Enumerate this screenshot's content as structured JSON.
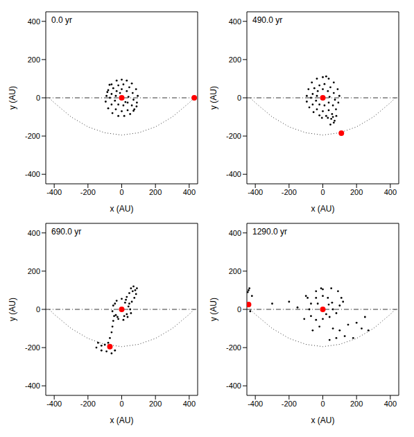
{
  "chart_data": [
    {
      "type": "scatter",
      "title": "0.0 yr",
      "x_label": "x (AU)",
      "y_label": "y (AU)",
      "xlim": [
        -450,
        450
      ],
      "ylim": [
        -450,
        450
      ],
      "xticks": [
        -400,
        -200,
        0,
        200,
        400
      ],
      "yticks": [
        -400,
        -200,
        0,
        200,
        400
      ],
      "series": [
        {
          "type": "line",
          "line_style": "dashdot",
          "color": "#000000",
          "x": [
            -450,
            450
          ],
          "y": [
            0,
            0
          ]
        },
        {
          "type": "line",
          "line_style": "dotted",
          "color": "#000000",
          "x": [
            -430,
            -400,
            -300,
            -200,
            -100,
            0,
            100,
            200,
            300,
            400,
            430
          ],
          "y": [
            0,
            -26,
            -100,
            -152,
            -183,
            -195,
            -183,
            -152,
            -100,
            -26,
            0
          ]
        },
        {
          "type": "scatter",
          "marker": "dot",
          "color": "#000000",
          "x": [
            -90,
            -80,
            -60,
            -30,
            0,
            30,
            60,
            85,
            95,
            90,
            75,
            50,
            15,
            -20,
            -55,
            -80,
            -95,
            -60,
            -50,
            -20,
            10,
            45,
            65,
            70,
            60,
            35,
            0,
            -35,
            -60,
            -70,
            -35,
            -30,
            0,
            30,
            40,
            35,
            10,
            -20,
            -40,
            -72,
            70,
            -85,
            88,
            -10,
            22
          ],
          "y": [
            10,
            40,
            70,
            90,
            95,
            90,
            75,
            45,
            10,
            -25,
            -60,
            -85,
            -95,
            -95,
            -80,
            -55,
            -20,
            20,
            50,
            65,
            70,
            55,
            25,
            -10,
            -40,
            -65,
            -70,
            -60,
            -35,
            0,
            10,
            35,
            45,
            35,
            5,
            -25,
            -40,
            -35,
            -15,
            68,
            -68,
            30,
            -45,
            25,
            -22
          ]
        },
        {
          "type": "scatter",
          "marker": "circle",
          "color": "#ff0000",
          "x": [
            0,
            430
          ],
          "y": [
            0,
            0
          ]
        }
      ]
    },
    {
      "type": "scatter",
      "title": "490.0 yr",
      "x_label": "x (AU)",
      "y_label": "y (AU)",
      "xlim": [
        -450,
        450
      ],
      "ylim": [
        -450,
        450
      ],
      "xticks": [
        -400,
        -200,
        0,
        200,
        400
      ],
      "yticks": [
        -400,
        -200,
        0,
        200,
        400
      ],
      "series": [
        {
          "type": "line",
          "line_style": "dashdot",
          "color": "#000000",
          "x": [
            -450,
            450
          ],
          "y": [
            0,
            0
          ]
        },
        {
          "type": "line",
          "line_style": "dotted",
          "color": "#000000",
          "x": [
            -430,
            -400,
            -300,
            -200,
            -100,
            0,
            100,
            200,
            300,
            400,
            430
          ],
          "y": [
            0,
            -26,
            -100,
            -152,
            -183,
            -195,
            -183,
            -152,
            -100,
            -26,
            0
          ]
        },
        {
          "type": "scatter",
          "marker": "dot",
          "color": "#000000",
          "x": [
            -95,
            -85,
            -65,
            -35,
            0,
            35,
            65,
            88,
            98,
            92,
            78,
            55,
            20,
            -20,
            -55,
            -80,
            -95,
            -60,
            -50,
            -20,
            10,
            45,
            65,
            72,
            60,
            35,
            0,
            -35,
            -60,
            -70,
            -35,
            -30,
            0,
            30,
            40,
            35,
            10,
            -20,
            -40,
            60,
            70,
            65,
            50,
            80,
            30,
            45,
            -5,
            20
          ],
          "y": [
            10,
            45,
            80,
            100,
            108,
            100,
            80,
            45,
            10,
            -25,
            -60,
            -85,
            -95,
            -92,
            -75,
            -50,
            -20,
            20,
            50,
            65,
            72,
            55,
            25,
            -10,
            -40,
            -65,
            -70,
            -60,
            -35,
            0,
            10,
            35,
            45,
            35,
            5,
            -25,
            -40,
            -35,
            -15,
            -100,
            -120,
            -130,
            -110,
            -95,
            -105,
            -140,
            -105,
            112
          ]
        },
        {
          "type": "scatter",
          "marker": "circle",
          "color": "#ff0000",
          "x": [
            0,
            110
          ],
          "y": [
            0,
            -185
          ]
        }
      ]
    },
    {
      "type": "scatter",
      "title": "690.0 yr",
      "x_label": "x (AU)",
      "y_label": "y (AU)",
      "xlim": [
        -450,
        450
      ],
      "ylim": [
        -450,
        450
      ],
      "xticks": [
        -400,
        -200,
        0,
        200,
        400
      ],
      "yticks": [
        -400,
        -200,
        0,
        200,
        400
      ],
      "series": [
        {
          "type": "line",
          "line_style": "dashdot",
          "color": "#000000",
          "x": [
            -450,
            450
          ],
          "y": [
            0,
            0
          ]
        },
        {
          "type": "line",
          "line_style": "dotted",
          "color": "#000000",
          "x": [
            -430,
            -400,
            -300,
            -200,
            -100,
            0,
            100,
            200,
            300,
            400,
            430
          ],
          "y": [
            0,
            -26,
            -100,
            -152,
            -183,
            -195,
            -183,
            -152,
            -100,
            -26,
            0
          ]
        },
        {
          "type": "scatter",
          "marker": "dot",
          "color": "#000000",
          "x": [
            50,
            45,
            25,
            0,
            -30,
            -50,
            -55,
            -45,
            -20,
            10,
            35,
            55,
            -40,
            60,
            75,
            85,
            80,
            70,
            55,
            45,
            30,
            90,
            65,
            -50,
            -55,
            -60,
            -70,
            -80,
            -100,
            -120,
            -140,
            -150,
            -120,
            -90,
            -60,
            -40,
            -70,
            40,
            20,
            -25,
            -35,
            30,
            15
          ],
          "y": [
            0,
            30,
            50,
            55,
            45,
            20,
            -10,
            -35,
            -50,
            -55,
            -40,
            -20,
            30,
            40,
            60,
            80,
            100,
            120,
            110,
            85,
            65,
            110,
            95,
            -60,
            -90,
            -120,
            -150,
            -175,
            -185,
            -190,
            -175,
            -200,
            -215,
            -220,
            -230,
            -215,
            -200,
            15,
            35,
            -40,
            -30,
            -25,
            -35
          ]
        },
        {
          "type": "scatter",
          "marker": "circle",
          "color": "#ff0000",
          "x": [
            0,
            -70
          ],
          "y": [
            0,
            -195
          ]
        }
      ]
    },
    {
      "type": "scatter",
      "title": "1290.0 yr",
      "x_label": "x (AU)",
      "y_label": "y (AU)",
      "xlim": [
        -450,
        450
      ],
      "ylim": [
        -450,
        450
      ],
      "xticks": [
        -400,
        -200,
        0,
        200,
        400
      ],
      "yticks": [
        -400,
        -200,
        0,
        200,
        400
      ],
      "series": [
        {
          "type": "line",
          "line_style": "dashdot",
          "color": "#000000",
          "x": [
            -450,
            450
          ],
          "y": [
            0,
            0
          ]
        },
        {
          "type": "line",
          "line_style": "dotted",
          "color": "#000000",
          "x": [
            -430,
            -400,
            -300,
            -200,
            -100,
            0,
            100,
            200,
            300,
            400,
            430
          ],
          "y": [
            0,
            -26,
            -100,
            -152,
            -183,
            -195,
            -183,
            -152,
            -100,
            -26,
            0
          ]
        },
        {
          "type": "scatter",
          "marker": "dot",
          "color": "#000000",
          "x": [
            60,
            55,
            30,
            0,
            -40,
            -70,
            -80,
            -70,
            -40,
            0,
            40,
            80,
            100,
            110,
            90,
            50,
            0,
            -40,
            -10,
            120,
            -90,
            35,
            -30,
            20,
            60,
            100,
            150,
            200,
            250,
            270,
            230,
            180,
            130,
            80,
            40,
            -20,
            -60,
            -110,
            -150,
            -100,
            -200,
            -300,
            -440,
            -435,
            -445,
            -430,
            -420
          ],
          "y": [
            0,
            35,
            60,
            70,
            60,
            30,
            0,
            -35,
            -55,
            -50,
            -40,
            -20,
            20,
            60,
            95,
            110,
            105,
            95,
            110,
            40,
            60,
            25,
            30,
            -25,
            -100,
            -110,
            -80,
            -70,
            -40,
            -110,
            -100,
            -150,
            -140,
            -150,
            -160,
            -90,
            -110,
            -50,
            10,
            70,
            40,
            30,
            100,
            110,
            90,
            -10,
            70
          ]
        },
        {
          "type": "scatter",
          "marker": "circle",
          "color": "#ff0000",
          "x": [
            0,
            -440
          ],
          "y": [
            0,
            25
          ]
        }
      ]
    }
  ]
}
